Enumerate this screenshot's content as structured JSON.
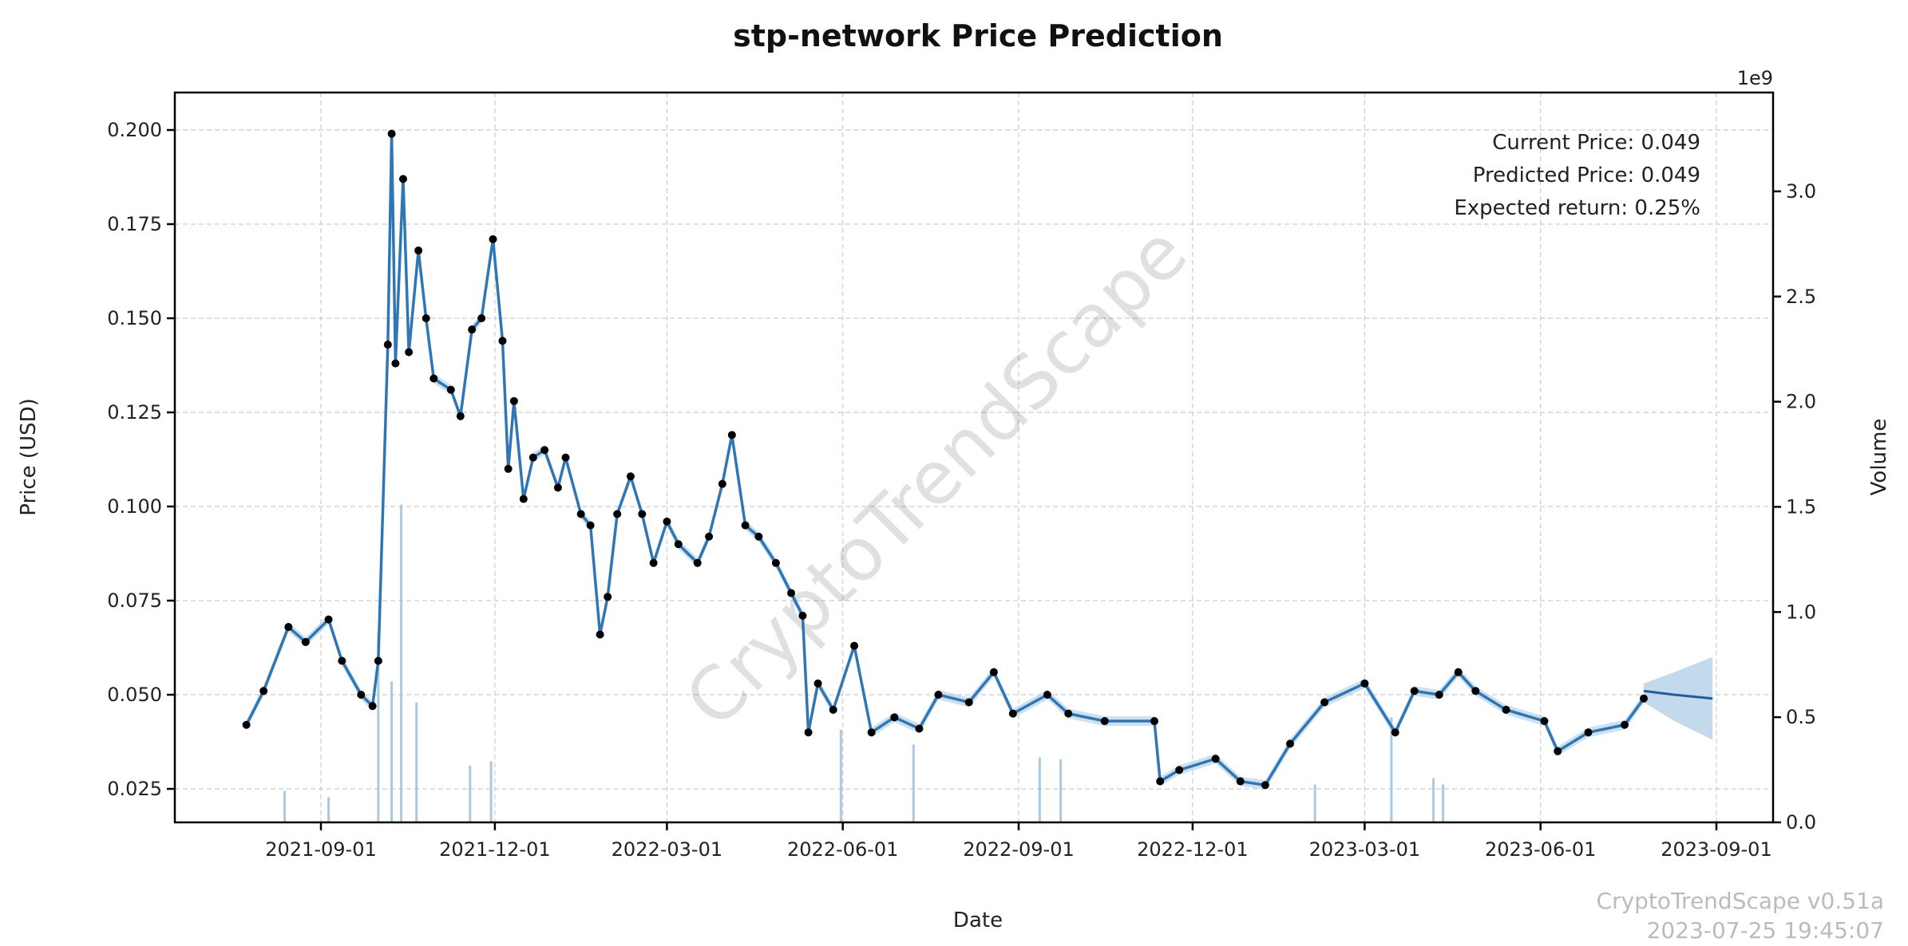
{
  "chart_data": {
    "type": "line",
    "title": "stp-network Price Prediction",
    "xlabel": "Date",
    "ylabel": "Price (USD)",
    "y2label": "Volume",
    "y2_offset_label": "1e9",
    "xlim": [
      "2021-07-05",
      "2023-09-19"
    ],
    "ylim": [
      0.015,
      0.21
    ],
    "y2lim": [
      0,
      3.47
    ],
    "grid": true,
    "x_ticks": [
      "2021-09-01",
      "2021-12-01",
      "2022-03-01",
      "2022-06-01",
      "2022-09-01",
      "2022-12-01",
      "2023-03-01",
      "2023-06-01",
      "2023-09-01"
    ],
    "y_ticks": [
      "0.025",
      "0.050",
      "0.075",
      "0.100",
      "0.125",
      "0.150",
      "0.175",
      "0.200"
    ],
    "y2_ticks": [
      "0.0",
      "0.5",
      "1.0",
      "1.5",
      "2.0",
      "2.5",
      "3.0"
    ],
    "annotations": [
      "Current Price: 0.049",
      "Predicted Price: 0.049",
      "Expected return: 0.25%"
    ],
    "watermark": "CryptoTrendScape",
    "footer": [
      "CryptoTrendScape v0.51a",
      "2023-07-25 19:45:07"
    ],
    "colors": {
      "line": "#2f76b5",
      "band": "#a9cbe6",
      "dots": "#000000",
      "volume": "#9dbfdd"
    },
    "price_series": {
      "name": "Price",
      "x": [
        "2021-07-24",
        "2021-08-02",
        "2021-08-15",
        "2021-08-24",
        "2021-09-05",
        "2021-09-12",
        "2021-09-22",
        "2021-09-28",
        "2021-10-01",
        "2021-10-06",
        "2021-10-08",
        "2021-10-10",
        "2021-10-14",
        "2021-10-17",
        "2021-10-22",
        "2021-10-26",
        "2021-10-30",
        "2021-11-08",
        "2021-11-13",
        "2021-11-19",
        "2021-11-24",
        "2021-11-30",
        "2021-12-05",
        "2021-12-08",
        "2021-12-11",
        "2021-12-16",
        "2021-12-21",
        "2021-12-27",
        "2022-01-03",
        "2022-01-07",
        "2022-01-15",
        "2022-01-20",
        "2022-01-25",
        "2022-01-29",
        "2022-02-03",
        "2022-02-10",
        "2022-02-16",
        "2022-02-22",
        "2022-03-01",
        "2022-03-07",
        "2022-03-17",
        "2022-03-23",
        "2022-03-30",
        "2022-04-04",
        "2022-04-11",
        "2022-04-18",
        "2022-04-27",
        "2022-05-05",
        "2022-05-11",
        "2022-05-14",
        "2022-05-19",
        "2022-05-27",
        "2022-06-07",
        "2022-06-16",
        "2022-06-28",
        "2022-07-11",
        "2022-07-21",
        "2022-08-06",
        "2022-08-19",
        "2022-08-29",
        "2022-09-16",
        "2022-09-27",
        "2022-10-16",
        "2022-11-11",
        "2022-11-14",
        "2022-11-24",
        "2022-12-13",
        "2022-12-26",
        "2023-01-08",
        "2023-01-21",
        "2023-02-08",
        "2023-03-01",
        "2023-03-17",
        "2023-03-27",
        "2023-04-09",
        "2023-04-19",
        "2023-04-28",
        "2023-05-14",
        "2023-06-03",
        "2023-06-10",
        "2023-06-26",
        "2023-07-15",
        "2023-07-25"
      ],
      "y": [
        0.042,
        0.051,
        0.068,
        0.064,
        0.07,
        0.059,
        0.05,
        0.047,
        0.059,
        0.143,
        0.199,
        0.138,
        0.187,
        0.141,
        0.168,
        0.15,
        0.134,
        0.131,
        0.124,
        0.147,
        0.15,
        0.171,
        0.144,
        0.11,
        0.128,
        0.102,
        0.113,
        0.115,
        0.105,
        0.113,
        0.098,
        0.095,
        0.066,
        0.076,
        0.098,
        0.108,
        0.098,
        0.085,
        0.096,
        0.09,
        0.085,
        0.092,
        0.106,
        0.119,
        0.095,
        0.092,
        0.085,
        0.077,
        0.071,
        0.04,
        0.053,
        0.046,
        0.063,
        0.04,
        0.044,
        0.041,
        0.05,
        0.048,
        0.056,
        0.045,
        0.05,
        0.045,
        0.043,
        0.043,
        0.027,
        0.03,
        0.033,
        0.027,
        0.026,
        0.037,
        0.048,
        0.053,
        0.04,
        0.051,
        0.05,
        0.056,
        0.051,
        0.046,
        0.043,
        0.035,
        0.04,
        0.042,
        0.049
      ]
    },
    "forecast_series": {
      "name": "Prediction",
      "x": [
        "2023-07-25",
        "2023-08-10",
        "2023-08-30"
      ],
      "y": [
        0.051,
        0.05,
        0.049
      ],
      "lower": [
        0.048,
        0.043,
        0.038
      ],
      "upper": [
        0.053,
        0.056,
        0.06
      ]
    },
    "volume_series": {
      "name": "Volume (1e9)",
      "x": [
        "2021-08-13",
        "2021-09-05",
        "2021-10-01",
        "2021-10-08",
        "2021-10-13",
        "2021-10-21",
        "2021-11-18",
        "2021-11-29",
        "2022-05-31",
        "2022-07-08",
        "2022-09-12",
        "2022-09-23",
        "2023-02-03",
        "2023-03-15",
        "2023-04-06",
        "2023-04-11"
      ],
      "y": [
        0.15,
        0.12,
        0.9,
        0.67,
        1.51,
        0.57,
        0.27,
        0.29,
        0.44,
        0.37,
        0.31,
        0.3,
        0.18,
        0.5,
        0.21,
        0.18
      ]
    }
  }
}
